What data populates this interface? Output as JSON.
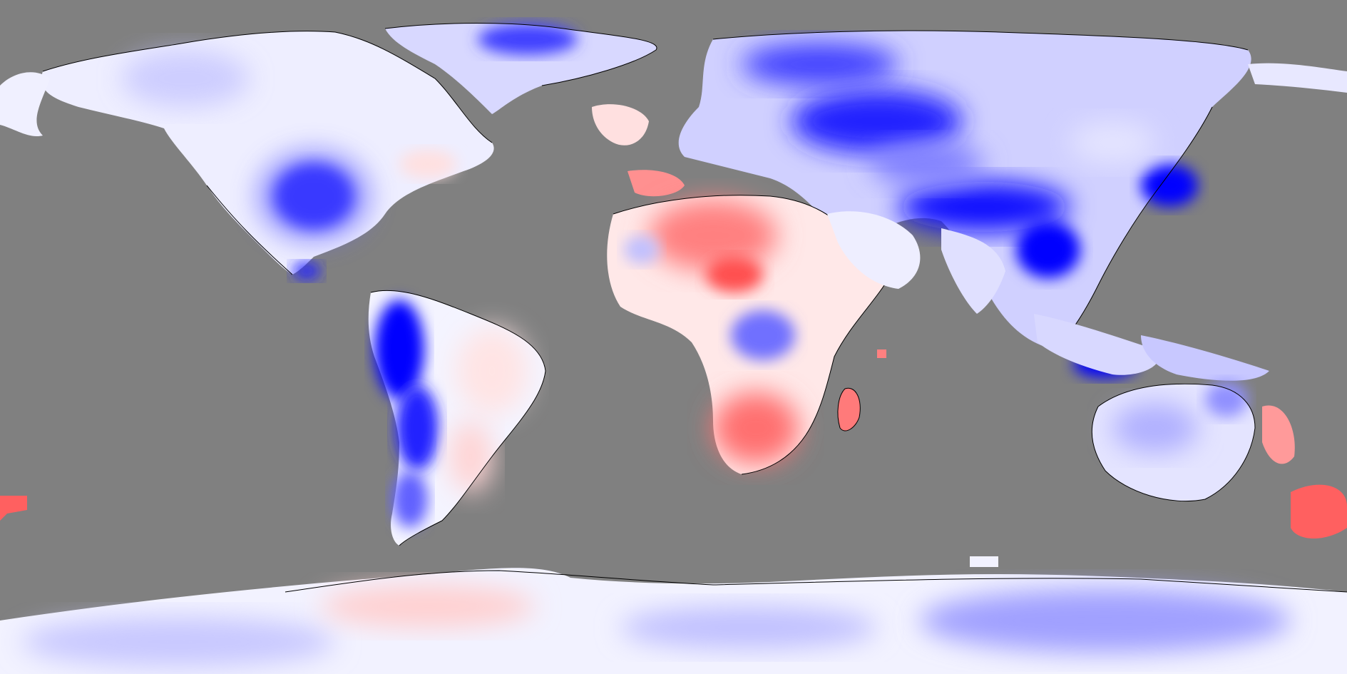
{
  "map": {
    "projection": "equirectangular",
    "ocean_color": "#808080",
    "scale_colors": {
      "strong_negative": "#0000ff",
      "negative": "#8080ff",
      "weak_negative": "#d8d8ff",
      "neutral": "#ffffff",
      "weak_positive": "#ffd8d8",
      "positive": "#ff8080",
      "strong_positive": "#ff4040"
    },
    "coastline_color": "#000000"
  }
}
